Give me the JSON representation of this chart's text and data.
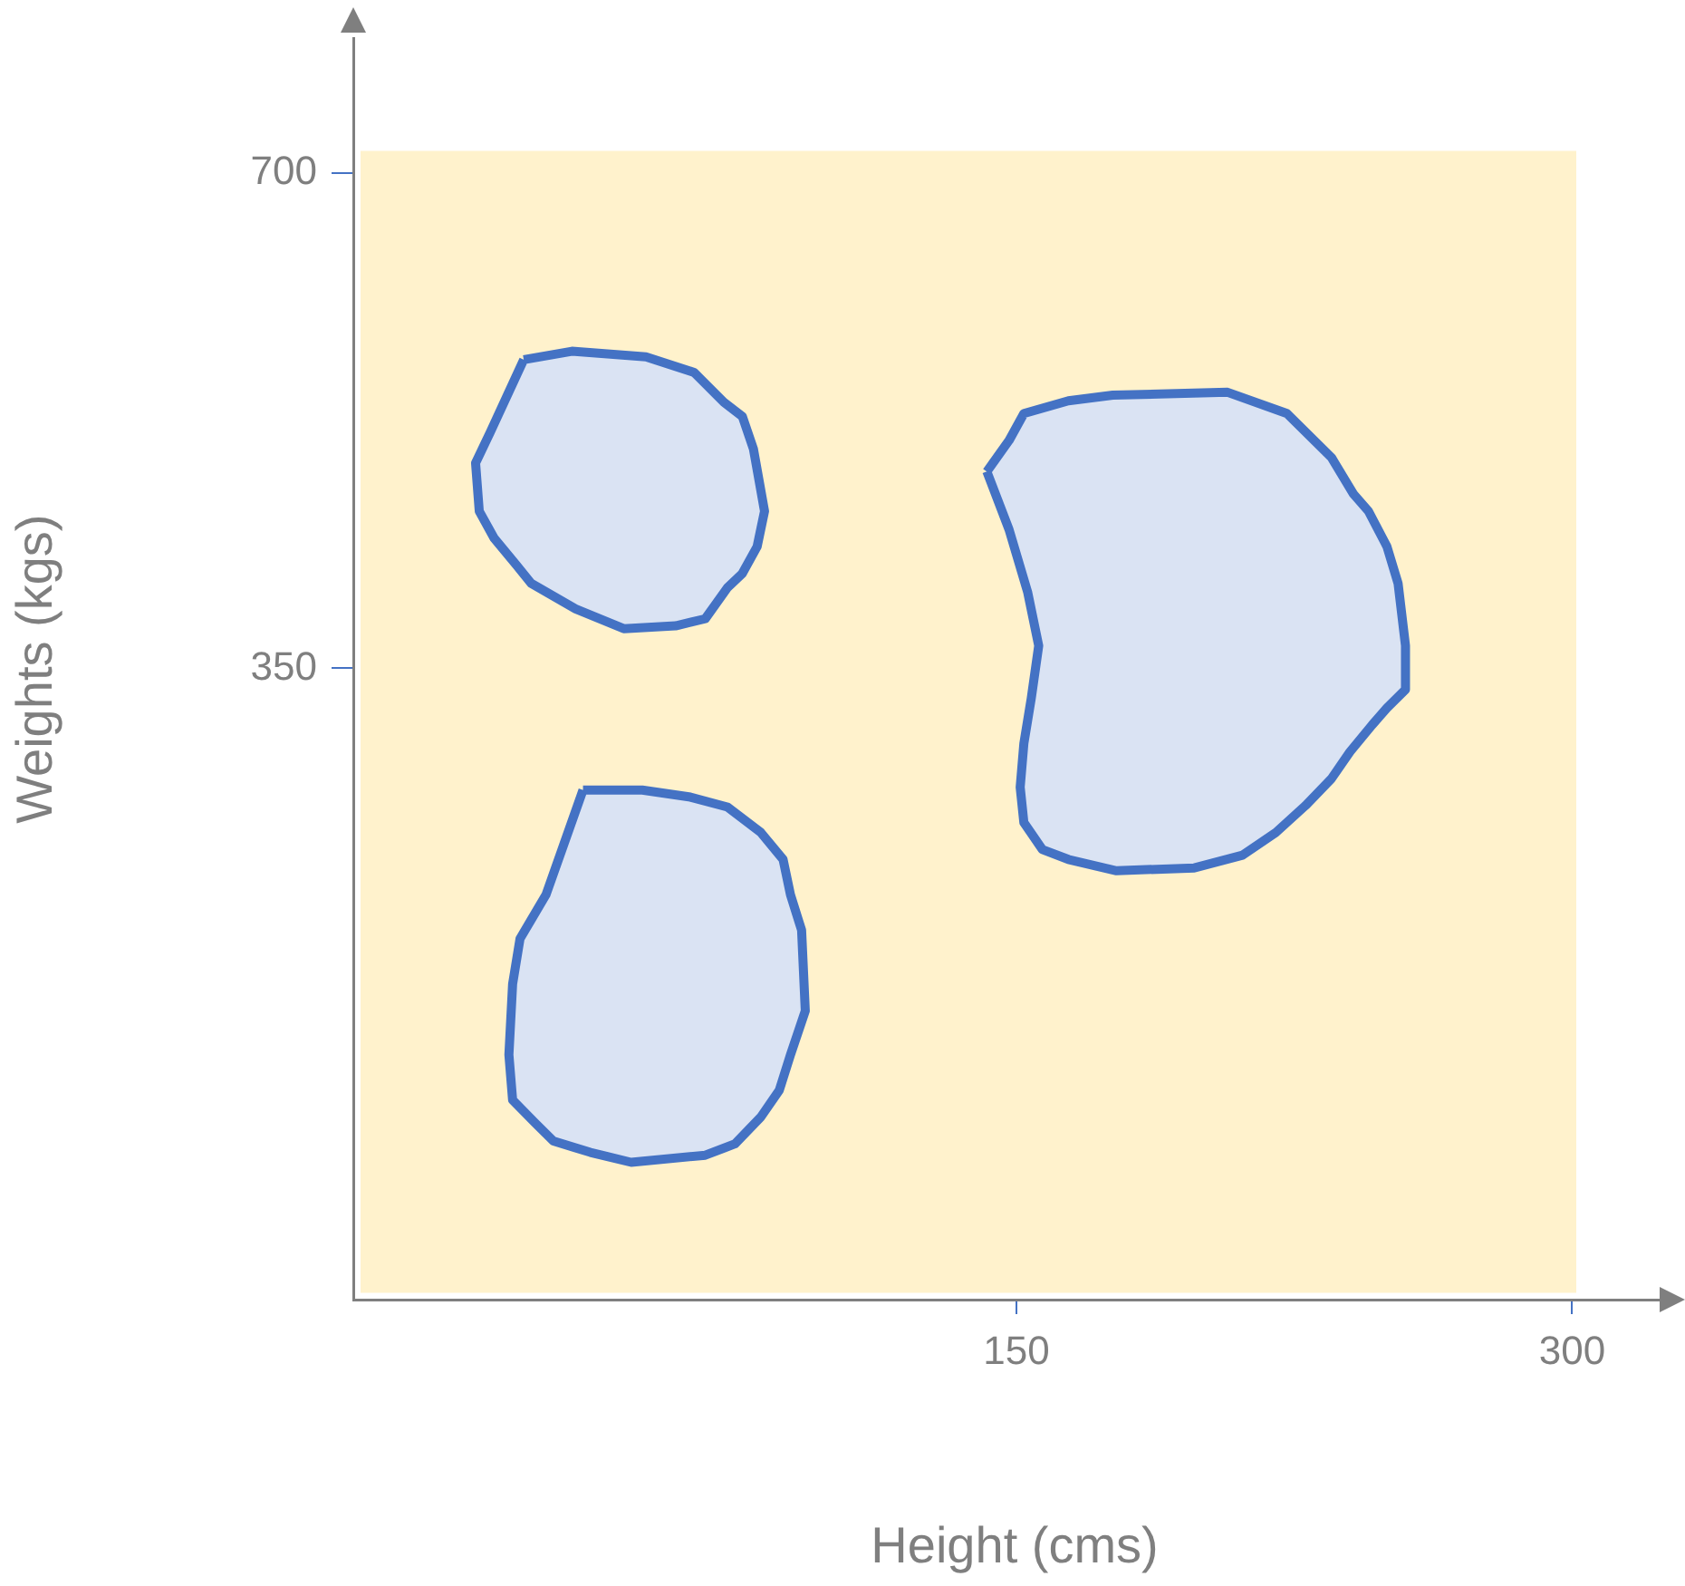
{
  "chart_data": {
    "type": "area",
    "xlabel": "Height (cms)",
    "ylabel": "Weights (kgs)",
    "xlim": [
      -29,
      328
    ],
    "ylim": [
      -96,
      795
    ],
    "xticks": [
      150,
      300
    ],
    "yticks": [
      350,
      700
    ],
    "marker": "none",
    "series": [
      {
        "color": "#4472c4",
        "x": [
          17,
          30,
          50,
          63,
          71,
          76,
          79,
          82,
          80,
          76,
          72,
          66,
          58,
          44,
          31,
          19,
          15,
          9,
          5,
          4,
          8,
          17
        ],
        "values": [
          568,
          574,
          570,
          559,
          538,
          528,
          505,
          461,
          436,
          417,
          407,
          385,
          380,
          378,
          392,
          410,
          423,
          442,
          461,
          495,
          517,
          568
        ]
      },
      {
        "color": "#4472c4",
        "x": [
          33,
          49,
          62,
          72,
          81,
          87,
          89,
          92,
          93,
          89,
          86,
          81,
          74,
          66,
          46,
          35,
          25,
          20,
          14,
          13,
          14,
          16,
          23,
          33
        ],
        "values": [
          264,
          264,
          259,
          252,
          234,
          215,
          190,
          165,
          108,
          77,
          52,
          33,
          14,
          6,
          1,
          8,
          16,
          29,
          45,
          77,
          127,
          159,
          190,
          264
        ]
      },
      {
        "color": "#4472c4",
        "x": [
          142,
          148,
          152,
          164,
          176,
          207,
          223,
          235,
          241,
          245,
          250,
          253,
          255,
          255,
          250,
          246,
          240,
          235,
          228,
          220,
          211,
          198,
          177,
          164,
          157,
          152,
          151,
          152,
          154,
          156,
          153,
          148,
          142
        ],
        "values": [
          489,
          511,
          530,
          539,
          543,
          545,
          530,
          499,
          473,
          461,
          436,
          410,
          366,
          335,
          322,
          310,
          291,
          272,
          253,
          234,
          218,
          209,
          207,
          215,
          222,
          241,
          266,
          297,
          329,
          366,
          404,
          448,
          489
        ]
      }
    ]
  }
}
